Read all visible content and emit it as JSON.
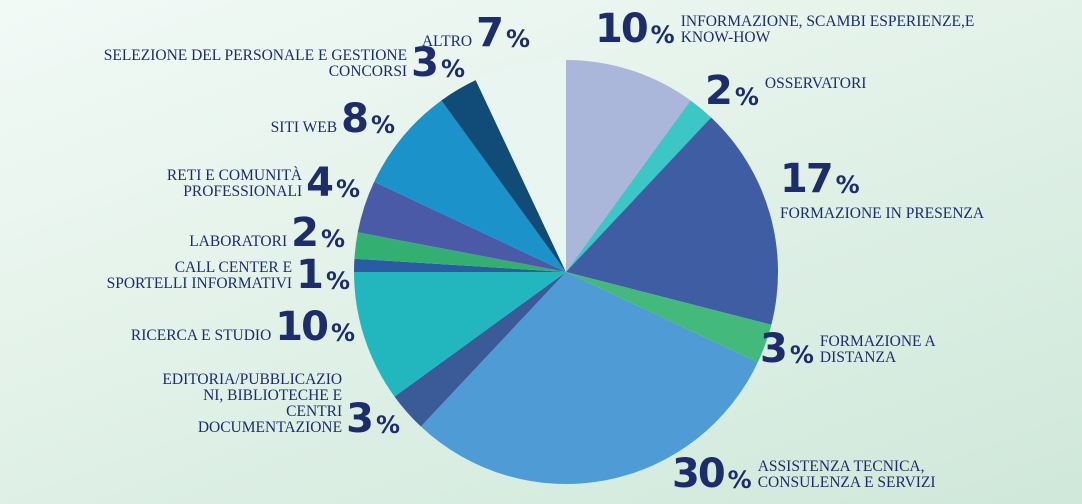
{
  "chart_data": {
    "type": "pie",
    "categories": [
      "INFORMAZIONE, SCAMBI ESPERIENZE,E KNOW-HOW",
      "OSSERVATORI",
      "FORMAZIONE IN PRESENZA",
      "FORMAZIONE A DISTANZA",
      "ASSISTENZA TECNICA, CONSULENZA E SERVIZI",
      "EDITORIA/PUBBLICAZIO NI, BIBLIOTECHE E CENTRI DOCUMENTAZIONE",
      "RICERCA E STUDIO",
      "CALL CENTER E SPORTELLI INFORMATIVI",
      "LABORATORI",
      "RETI E COMUNITÀ PROFESSIONALI",
      "SITI WEB",
      "SELEZIONE DEL PERSONALE E GESTIONE CONCORSI",
      "ALTRO"
    ],
    "values": [
      10,
      2,
      17,
      3,
      30,
      3,
      10,
      1,
      2,
      4,
      8,
      3,
      7
    ],
    "unit": "%",
    "colors": [
      "#aab6da",
      "#3cc6c6",
      "#3f5da3",
      "#43b97c",
      "#4f9bd6",
      "#3b5a98",
      "#22b7bf",
      "#2b5ba2",
      "#33b071",
      "#4b5aa6",
      "#1b92c9",
      "#114b78",
      "#e9f5f0"
    ]
  }
}
